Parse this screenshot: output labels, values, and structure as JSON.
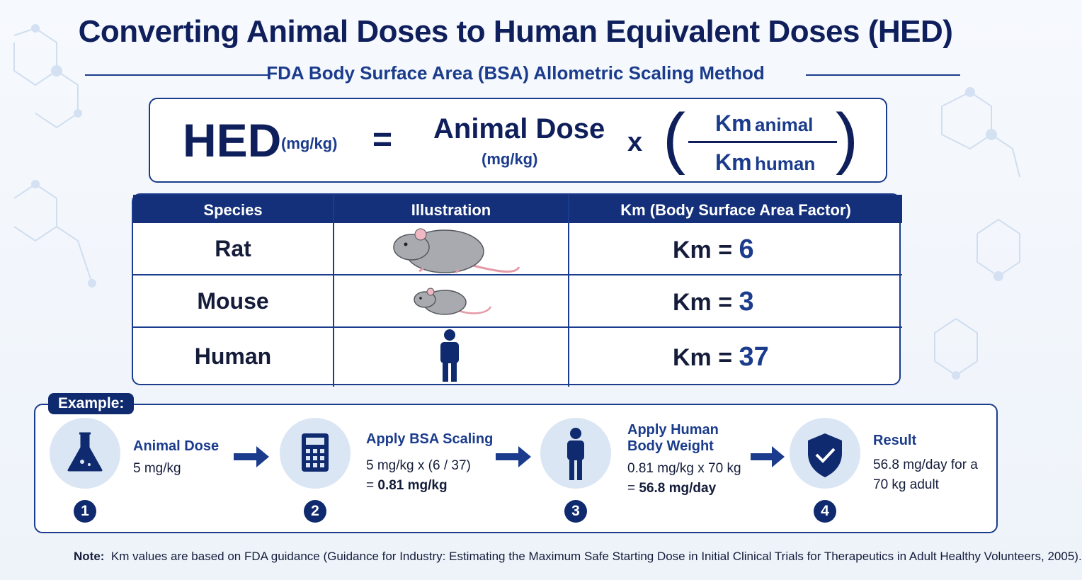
{
  "header": {
    "title": "Converting Animal Doses to Human Equivalent Doses (HED)",
    "subtitle": "FDA Body Surface Area (BSA) Allometric Scaling Method"
  },
  "formula": {
    "lhs": "HED",
    "lhs_unit": "(mg/kg)",
    "equals": "=",
    "term": "Animal Dose",
    "term_unit": "(mg/kg)",
    "times": "x",
    "numerator": {
      "symbol": "Km",
      "label": "animal"
    },
    "denominator": {
      "symbol": "Km",
      "label": "human"
    }
  },
  "table": {
    "headers": [
      "Species",
      "Illustration",
      "Km (Body Surface Area Factor)"
    ],
    "rows": [
      {
        "species": "Rat",
        "km_label": "Km =",
        "km": 6
      },
      {
        "species": "Mouse",
        "km_label": "Km =",
        "km": 3
      },
      {
        "species": "Human",
        "km_label": "Km =",
        "km": 37
      }
    ]
  },
  "example": {
    "label": "Example:",
    "steps": [
      {
        "number": 1,
        "title": "Animal Dose",
        "detail": "5 mg/kg"
      },
      {
        "number": 2,
        "title": "Apply BSA Scaling",
        "detail": "5 mg/kg x (6 / 37)",
        "result_prefix": "=",
        "result": "0.81 mg/kg"
      },
      {
        "number": 3,
        "title": "Apply Human Body Weight",
        "detail": "0.81 mg/kg x 70 kg",
        "result_prefix": "=",
        "result": "56.8 mg/day"
      },
      {
        "number": 4,
        "title": "Result",
        "detail": "56.8 mg/day for a 70 kg adult"
      }
    ]
  },
  "note": {
    "label": "Note:",
    "text": "Km values are based on FDA guidance (Guidance for Industry: Estimating the Maximum Safe Starting Dose in Initial Clinical Trials for Therapeutics in Adult Healthy Volunteers, 2005)."
  }
}
